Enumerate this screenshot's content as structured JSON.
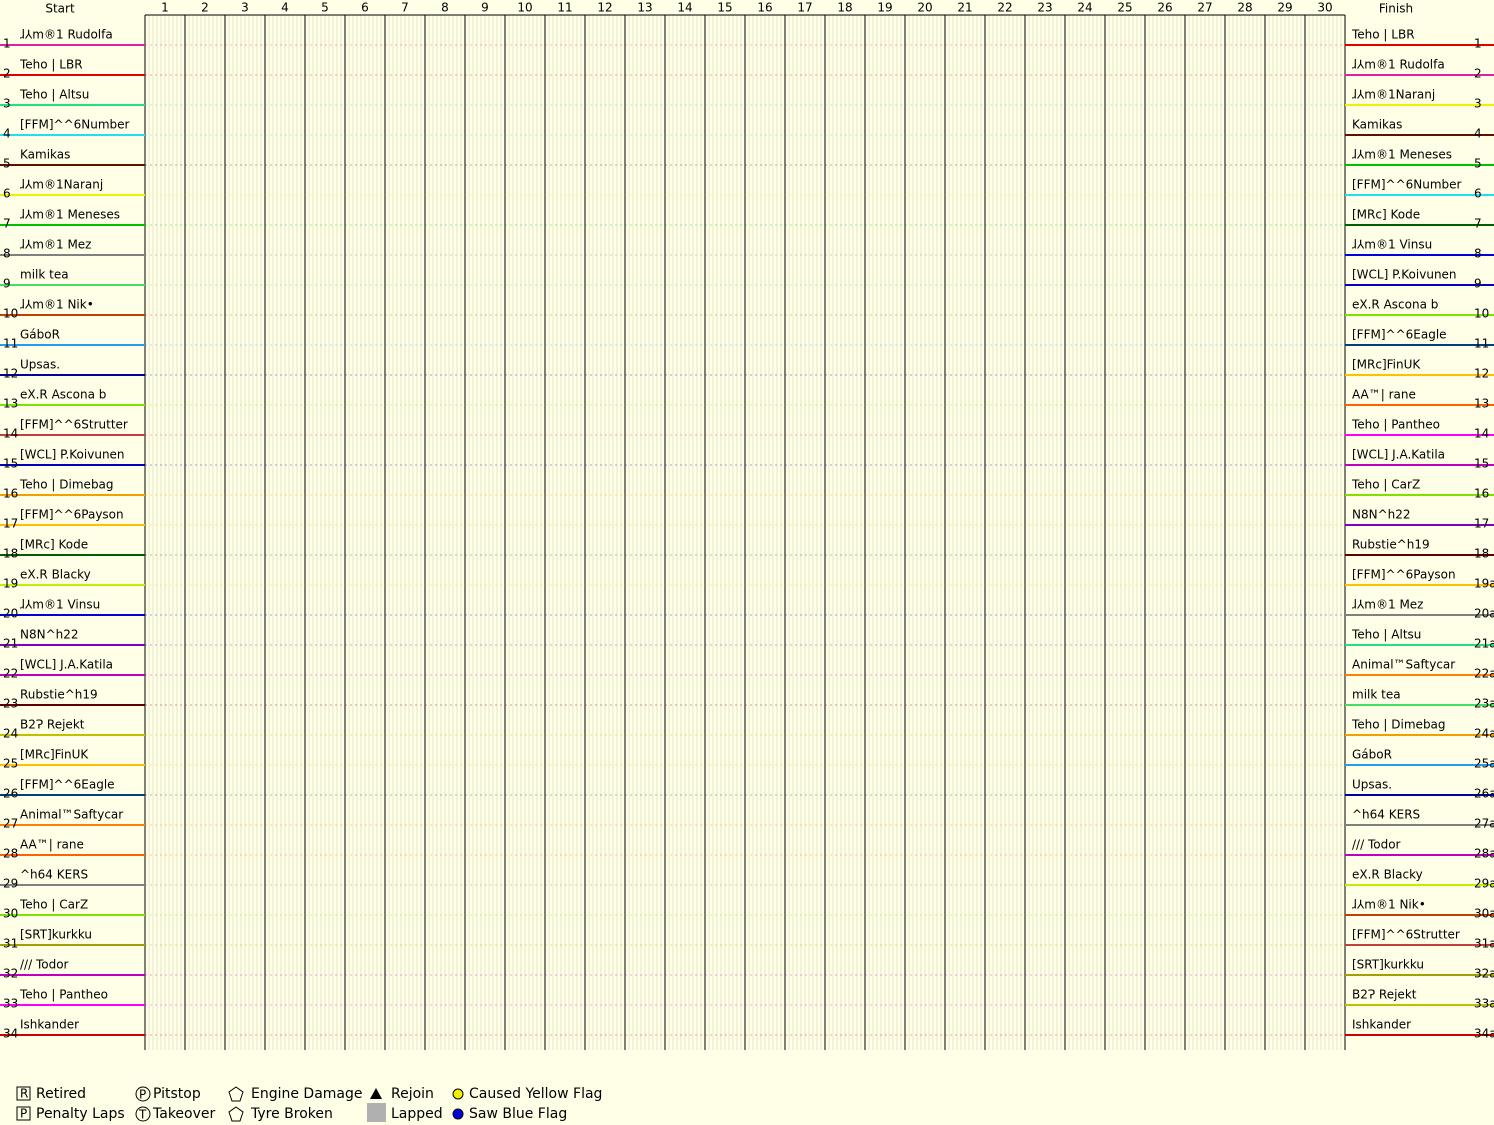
{
  "header": {
    "start": "Start",
    "finish": "Finish"
  },
  "laps": [
    1,
    2,
    3,
    4,
    5,
    6,
    7,
    8,
    9,
    10,
    11,
    12,
    13,
    14,
    15,
    16,
    17,
    18,
    19,
    20,
    21,
    22,
    23,
    24,
    25,
    26,
    27,
    28,
    29,
    30
  ],
  "start_grid": [
    {
      "position": "1",
      "name": "ɺ⅄m®1 Rudolfa",
      "color": "#e020a0"
    },
    {
      "position": "2",
      "name": "Teho | LBR",
      "color": "#e00000"
    },
    {
      "position": "3",
      "name": "Teho | Altsu",
      "color": "#20e080"
    },
    {
      "position": "4",
      "name": "[FFM]^^6Number",
      "color": "#20e0f0"
    },
    {
      "position": "5",
      "name": "Kamikas",
      "color": "#601000"
    },
    {
      "position": "6",
      "name": "ɺ⅄m®1Naranj",
      "color": "#f0f000"
    },
    {
      "position": "7",
      "name": "ɺ⅄m®1 Meneses",
      "color": "#00c000"
    },
    {
      "position": "8",
      "name": "ɺ⅄m®1 Mez",
      "color": "#808080"
    },
    {
      "position": "9",
      "name": "milk tea",
      "color": "#40e060"
    },
    {
      "position": "10",
      "name": "ɺ⅄m®1 Nik•",
      "color": "#c04000"
    },
    {
      "position": "11",
      "name": "GáboR",
      "color": "#20a0f0"
    },
    {
      "position": "12",
      "name": "Upsas.",
      "color": "#0000a0"
    },
    {
      "position": "13",
      "name": "eX.R Ascona b",
      "color": "#80e000"
    },
    {
      "position": "14",
      "name": "[FFM]^^6Strutter",
      "color": "#c04040"
    },
    {
      "position": "15",
      "name": "[WCL] P.Koivunen",
      "color": "#0000c0"
    },
    {
      "position": "16",
      "name": "Teho | Dimebag",
      "color": "#f0a000"
    },
    {
      "position": "17",
      "name": "[FFM]^^6Payson",
      "color": "#ffc000"
    },
    {
      "position": "18",
      "name": "[MRc] Kode",
      "color": "#006000"
    },
    {
      "position": "19",
      "name": "eX.R Blacky",
      "color": "#c0f000"
    },
    {
      "position": "20",
      "name": "ɺ⅄m®1 Vinsu",
      "color": "#0000e0"
    },
    {
      "position": "21",
      "name": "N8N^h22",
      "color": "#8000c0"
    },
    {
      "position": "22",
      "name": "[WCL] J.A.Katila",
      "color": "#c000c0"
    },
    {
      "position": "23",
      "name": "Rubstie^h19",
      "color": "#600000"
    },
    {
      "position": "24",
      "name": "B2Ɂ Rejekt",
      "color": "#c0c000"
    },
    {
      "position": "25",
      "name": "[MRc]FinUK",
      "color": "#ffc000"
    },
    {
      "position": "26",
      "name": "[FFM]^^6Eagle",
      "color": "#004080"
    },
    {
      "position": "27",
      "name": "Animal™Saftycar",
      "color": "#ff8000"
    },
    {
      "position": "28",
      "name": "AA™| rane",
      "color": "#ff6000"
    },
    {
      "position": "29",
      "name": "^h64 KERS",
      "color": "#808080"
    },
    {
      "position": "30",
      "name": "Teho | CarZ",
      "color": "#80e000"
    },
    {
      "position": "31",
      "name": "[SRT]kurkku",
      "color": "#a0a000"
    },
    {
      "position": "32",
      "name": "/// Todor",
      "color": "#c000c0"
    },
    {
      "position": "33",
      "name": "Teho | Pantheo",
      "color": "#ff00ff"
    },
    {
      "position": "34",
      "name": "Ishkander",
      "color": "#d00000"
    }
  ],
  "finish": [
    {
      "position": "1",
      "name": "Teho | LBR",
      "color": "#e00000"
    },
    {
      "position": "2",
      "name": "ɺ⅄m®1 Rudolfa",
      "color": "#e020a0"
    },
    {
      "position": "3",
      "name": "ɺ⅄m®1Naranj",
      "color": "#f0f000"
    },
    {
      "position": "4",
      "name": "Kamikas",
      "color": "#601000"
    },
    {
      "position": "5",
      "name": "ɺ⅄m®1 Meneses",
      "color": "#00c000"
    },
    {
      "position": "6",
      "name": "[FFM]^^6Number",
      "color": "#20e0f0"
    },
    {
      "position": "7",
      "name": "[MRc] Kode",
      "color": "#006000"
    },
    {
      "position": "8",
      "name": "ɺ⅄m®1 Vinsu",
      "color": "#0000e0"
    },
    {
      "position": "9",
      "name": "[WCL] P.Koivunen",
      "color": "#0000c0"
    },
    {
      "position": "10",
      "name": "eX.R Ascona b",
      "color": "#80e000"
    },
    {
      "position": "11",
      "name": "[FFM]^^6Eagle",
      "color": "#004080"
    },
    {
      "position": "12",
      "name": "[MRc]FinUK",
      "color": "#ffc000"
    },
    {
      "position": "13",
      "name": "AA™| rane",
      "color": "#ff6000"
    },
    {
      "position": "14",
      "name": "Teho | Pantheo",
      "color": "#ff00ff"
    },
    {
      "position": "15",
      "name": "[WCL] J.A.Katila",
      "color": "#c000c0"
    },
    {
      "position": "16",
      "name": "Teho | CarZ",
      "color": "#80e000"
    },
    {
      "position": "17",
      "name": "N8N^h22",
      "color": "#8000c0"
    },
    {
      "position": "18",
      "name": "Rubstie^h19",
      "color": "#600000"
    },
    {
      "position": "19a",
      "name": "[FFM]^^6Payson",
      "color": "#ffc000"
    },
    {
      "position": "20a",
      "name": "ɺ⅄m®1 Mez",
      "color": "#808080"
    },
    {
      "position": "21a",
      "name": "Teho | Altsu",
      "color": "#20e080"
    },
    {
      "position": "22a",
      "name": "Animal™Saftycar",
      "color": "#ff8000"
    },
    {
      "position": "23a",
      "name": "milk tea",
      "color": "#40e060"
    },
    {
      "position": "24a",
      "name": "Teho | Dimebag",
      "color": "#f0a000"
    },
    {
      "position": "25a",
      "name": "GáboR",
      "color": "#20a0f0"
    },
    {
      "position": "26a",
      "name": "Upsas.",
      "color": "#0000a0"
    },
    {
      "position": "27a",
      "name": "^h64 KERS",
      "color": "#808080"
    },
    {
      "position": "28a",
      "name": "/// Todor",
      "color": "#c000c0"
    },
    {
      "position": "29a",
      "name": "eX.R Blacky",
      "color": "#c0f000"
    },
    {
      "position": "30a",
      "name": "ɺ⅄m®1 Nik•",
      "color": "#c04000"
    },
    {
      "position": "31a",
      "name": "[FFM]^^6Strutter",
      "color": "#c04040"
    },
    {
      "position": "32a",
      "name": "[SRT]kurkku",
      "color": "#a0a000"
    },
    {
      "position": "33a",
      "name": "B2Ɂ Rejekt",
      "color": "#c0c000"
    },
    {
      "position": "34a",
      "name": "Ishkander",
      "color": "#d00000"
    }
  ],
  "legend": [
    "Retired",
    "Penalty Laps",
    "Pitstop",
    "Takeover",
    "Engine Damage",
    "Tyre Broken",
    "Rejoin",
    "Lapped",
    "Caused Yellow Flag",
    "Saw Blue Flag"
  ]
}
